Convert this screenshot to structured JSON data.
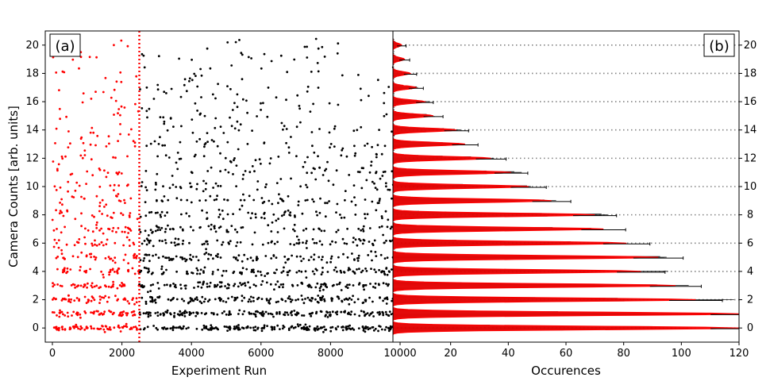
{
  "chart_data": [
    {
      "panel": "(a)",
      "type": "scatter",
      "xlabel": "Experiment Run",
      "ylabel": "Camera Counts [arb. units]",
      "xlim": [
        0,
        10000
      ],
      "ylim": [
        -1,
        21
      ],
      "xticks": [
        0,
        2000,
        4000,
        6000,
        8000,
        10000
      ],
      "yticks": [
        0,
        2,
        4,
        6,
        8,
        10,
        12,
        14,
        16,
        18,
        20
      ],
      "cut_line_x": 2500,
      "series": [
        {
          "color": "#ff0000",
          "x_range": [
            0,
            2500
          ],
          "levels": [
            0,
            1,
            2,
            3,
            4,
            5,
            6,
            7,
            8,
            9,
            10,
            11,
            12,
            13,
            14,
            15,
            16,
            17,
            18,
            19,
            20
          ]
        },
        {
          "color": "#000000",
          "x_range": [
            2500,
            10000
          ],
          "levels": [
            0,
            1,
            2,
            3,
            4,
            5,
            6,
            7,
            8,
            9,
            10,
            11,
            12,
            13,
            14,
            15,
            16,
            17,
            18,
            19,
            20
          ]
        }
      ]
    },
    {
      "panel": "(b)",
      "type": "bar",
      "orientation": "horizontal",
      "xlabel": "Occurences",
      "xlim": [
        0,
        120
      ],
      "xticks": [
        0,
        20,
        40,
        60,
        80,
        100,
        120
      ],
      "ylim": [
        -1,
        21
      ],
      "yticks": [
        0,
        2,
        4,
        6,
        8,
        10,
        12,
        14,
        16,
        18,
        20
      ],
      "grid_levels": [
        0,
        2,
        4,
        6,
        8,
        10,
        12,
        14,
        16,
        18,
        20
      ],
      "fit_color": "#ff0000",
      "bar_color": "#000000",
      "peaks": [
        {
          "level": 0,
          "height": 120
        },
        {
          "level": 1,
          "height": 120
        },
        {
          "level": 2,
          "height": 105
        },
        {
          "level": 3,
          "height": 98
        },
        {
          "level": 4,
          "height": 86
        },
        {
          "level": 5,
          "height": 92
        },
        {
          "level": 6,
          "height": 81
        },
        {
          "level": 7,
          "height": 73
        },
        {
          "level": 8,
          "height": 70
        },
        {
          "level": 9,
          "height": 55
        },
        {
          "level": 10,
          "height": 47
        },
        {
          "level": 11,
          "height": 41
        },
        {
          "level": 12,
          "height": 34
        },
        {
          "level": 13,
          "height": 25
        },
        {
          "level": 14,
          "height": 22
        },
        {
          "level": 15,
          "height": 14
        },
        {
          "level": 16,
          "height": 11
        },
        {
          "level": 17,
          "height": 8
        },
        {
          "level": 18,
          "height": 6
        },
        {
          "level": 19,
          "height": 4
        },
        {
          "level": 20,
          "height": 3
        }
      ]
    }
  ]
}
